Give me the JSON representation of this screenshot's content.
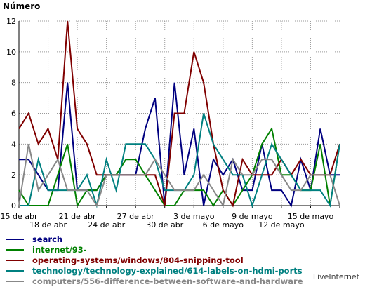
{
  "chart_data": {
    "type": "line",
    "ylabel": "Número",
    "ylim": [
      0,
      12
    ],
    "yticks": [
      0,
      2,
      4,
      6,
      8,
      10,
      12
    ],
    "grid": true,
    "x_start": "15 de abr",
    "x_end": "15 de mayo",
    "xticks_row1": [
      "15 de abr",
      "21 de abr",
      "27 de abr",
      "3 de mayo",
      "9 de mayo",
      "15 de mayo"
    ],
    "xticks_row2": [
      "18 de abr",
      "24 de abr",
      "30 de abr",
      "6 de mayo",
      "12 de mayo"
    ],
    "series": [
      {
        "name": "search",
        "color": "#000080",
        "values": [
          3,
          3,
          2,
          1,
          1,
          8,
          1,
          1,
          1,
          2,
          2,
          2,
          2,
          5,
          7,
          0,
          8,
          2,
          5,
          0,
          3,
          2,
          3,
          1,
          1,
          4,
          1,
          1,
          0,
          3,
          1,
          5,
          2,
          2
        ]
      },
      {
        "name": "internet/93-",
        "color": "#008000",
        "values": [
          1,
          0,
          0,
          0,
          2,
          4,
          0,
          1,
          1,
          2,
          2,
          3,
          3,
          2,
          1,
          0,
          0,
          1,
          1,
          1,
          0,
          1,
          0,
          1,
          2,
          4,
          5,
          2,
          2,
          1,
          1,
          4,
          0,
          4
        ]
      },
      {
        "name": "operating-systems/windows/804-snipping-tool",
        "color": "#800000",
        "values": [
          5,
          6,
          4,
          5,
          3,
          12,
          5,
          4,
          2,
          2,
          2,
          2,
          2,
          2,
          2,
          0,
          6,
          6,
          10,
          8,
          4,
          1,
          0,
          3,
          2,
          2,
          2,
          3,
          2,
          3,
          2,
          2,
          2,
          4
        ]
      },
      {
        "name": "technology/technology-explained/614-labels-on-hdmi-ports",
        "color": "#008080",
        "values": [
          0,
          0,
          3,
          1,
          1,
          1,
          1,
          2,
          0,
          3,
          1,
          4,
          4,
          4,
          3,
          1,
          1,
          1,
          2,
          6,
          4,
          3,
          2,
          2,
          0,
          2,
          4,
          3,
          2,
          1,
          1,
          1,
          0,
          4
        ]
      },
      {
        "name": "computers/556-difference-between-software-and-hardware",
        "color": "#888888",
        "values": [
          0,
          4,
          1,
          2,
          3,
          1,
          1,
          1,
          0,
          2,
          2,
          2,
          2,
          2,
          3,
          2,
          1,
          1,
          1,
          2,
          1,
          0,
          3,
          2,
          2,
          3,
          3,
          2,
          1,
          1,
          2,
          2,
          2,
          0
        ]
      }
    ]
  },
  "brand": "LiveInternet"
}
